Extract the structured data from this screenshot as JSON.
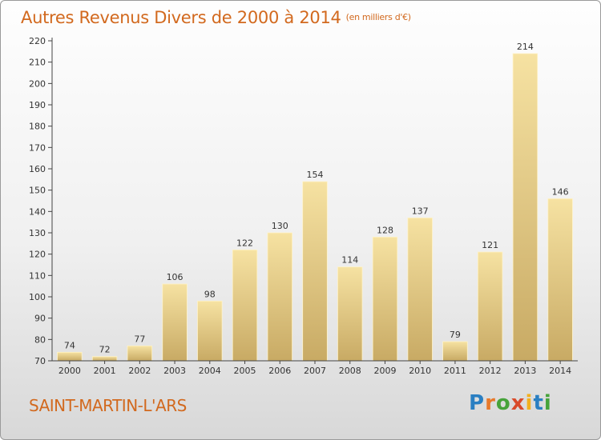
{
  "title": "Autres Revenus Divers de 2000 à 2014",
  "unit": "(en milliers d'€)",
  "commune": "SAINT-MARTIN-L'ARS",
  "logo": {
    "letters": [
      "P",
      "r",
      "o",
      "x",
      "i",
      "t",
      "i"
    ],
    "colors": [
      "#2a7fc2",
      "#e8792a",
      "#46a33a",
      "#d94b2b",
      "#f2b01e",
      "#2a7fc2",
      "#46a33a"
    ]
  },
  "chart_data": {
    "type": "bar",
    "categories": [
      "2000",
      "2001",
      "2002",
      "2003",
      "2004",
      "2005",
      "2006",
      "2007",
      "2008",
      "2009",
      "2010",
      "2011",
      "2012",
      "2013",
      "2014"
    ],
    "values": [
      74,
      72,
      77,
      106,
      98,
      122,
      130,
      154,
      114,
      128,
      137,
      79,
      121,
      214,
      146
    ],
    "ylim": [
      70,
      220
    ],
    "yticks": [
      70,
      80,
      90,
      100,
      110,
      120,
      130,
      140,
      150,
      160,
      170,
      180,
      190,
      200,
      210,
      220
    ],
    "grid": false,
    "bar_color": "#e8cc82"
  }
}
